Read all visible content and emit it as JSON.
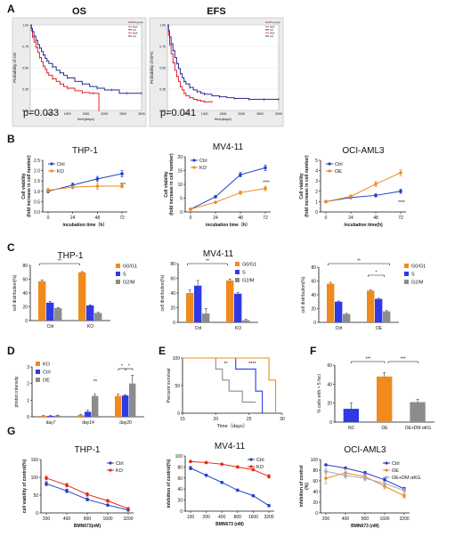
{
  "panel_letters": [
    "A",
    "B",
    "C",
    "D",
    "E",
    "F",
    "G"
  ],
  "chart_data": [
    {
      "panel": "A",
      "type": "line",
      "title": "OS",
      "xlabel": "time(days)",
      "ylabel": "Probability of OS",
      "xlim": [
        0,
        3000
      ],
      "ylim": [
        0,
        1
      ],
      "grid": true,
      "xticks": [
        "0",
        "500",
        "1000",
        "1500",
        "2000",
        "2500",
        "3000"
      ],
      "yticks": [
        "0.00",
        "0.25",
        "0.50",
        "0.75",
        "1.00"
      ],
      "legend_title": "KCAT1 group",
      "legend_entries": [
        "high",
        "low",
        "high",
        "low"
      ],
      "pvalue": "p=0.033",
      "series": [
        {
          "name": "high",
          "color": "#e8202a",
          "x": [
            0,
            30,
            60,
            100,
            150,
            200,
            250,
            300,
            350,
            400,
            450,
            500,
            600,
            700,
            800,
            900,
            1000,
            1200,
            1400,
            1600,
            1700,
            1800,
            1850
          ],
          "y": [
            1.0,
            0.93,
            0.86,
            0.8,
            0.74,
            0.68,
            0.62,
            0.57,
            0.52,
            0.48,
            0.44,
            0.41,
            0.37,
            0.34,
            0.31,
            0.28,
            0.26,
            0.23,
            0.21,
            0.2,
            0.2,
            0.2,
            0.0
          ]
        },
        {
          "name": "low",
          "color": "#2a2f8f",
          "x": [
            0,
            30,
            60,
            100,
            150,
            200,
            250,
            300,
            350,
            400,
            450,
            500,
            600,
            700,
            800,
            900,
            1000,
            1200,
            1400,
            1600,
            1800,
            2000,
            2200,
            2400,
            2600,
            2800,
            3000
          ],
          "y": [
            1.0,
            0.96,
            0.92,
            0.87,
            0.82,
            0.77,
            0.73,
            0.69,
            0.65,
            0.61,
            0.58,
            0.55,
            0.51,
            0.47,
            0.44,
            0.41,
            0.38,
            0.34,
            0.31,
            0.28,
            0.26,
            0.24,
            0.24,
            0.2,
            0.2,
            0.2,
            0.2
          ]
        }
      ]
    },
    {
      "panel": "A2",
      "type": "line",
      "title": "EFS",
      "xlabel": "time(days)",
      "ylabel": "Probability of EFS",
      "xlim": [
        0,
        3000
      ],
      "ylim": [
        0,
        1
      ],
      "grid": true,
      "xticks": [
        "0",
        "500",
        "1000",
        "1500",
        "2000",
        "2500",
        "3000"
      ],
      "yticks": [
        "0.00",
        "0.25",
        "0.50",
        "0.75",
        "1.00"
      ],
      "legend_title": "KCAT1 group",
      "legend_entries": [
        "high",
        "low",
        "high",
        "low"
      ],
      "pvalue": "p=0.041",
      "series": [
        {
          "name": "high",
          "color": "#e8202a",
          "x": [
            0,
            30,
            60,
            100,
            150,
            200,
            250,
            300,
            350,
            400,
            450,
            500,
            600,
            700,
            800,
            900,
            1000,
            1100,
            1200
          ],
          "y": [
            1.0,
            0.88,
            0.77,
            0.66,
            0.56,
            0.47,
            0.4,
            0.34,
            0.28,
            0.24,
            0.2,
            0.17,
            0.15,
            0.13,
            0.12,
            0.11,
            0.1,
            0.1,
            0.1
          ]
        },
        {
          "name": "low",
          "color": "#2a2f8f",
          "x": [
            0,
            30,
            60,
            100,
            150,
            200,
            250,
            300,
            350,
            400,
            450,
            500,
            600,
            700,
            800,
            900,
            1000,
            1200,
            1400,
            1600,
            1800,
            2000,
            2200,
            2400,
            2600,
            2800,
            3000
          ],
          "y": [
            1.0,
            0.93,
            0.86,
            0.78,
            0.7,
            0.62,
            0.55,
            0.49,
            0.43,
            0.38,
            0.34,
            0.31,
            0.27,
            0.24,
            0.22,
            0.2,
            0.19,
            0.17,
            0.16,
            0.15,
            0.14,
            0.14,
            0.13,
            0.13,
            0.13,
            0.13,
            0.13
          ]
        }
      ]
    },
    {
      "panel": "B",
      "type": "line",
      "title": "THP-1",
      "xlabel": "incubation time（h）",
      "ylabel": "Cell viability (fold increase in cell number)",
      "categories": [
        "0",
        "24",
        "48",
        "72"
      ],
      "ylim": [
        0,
        2.5
      ],
      "yticks": [
        "0.0",
        "0.5",
        "1.0",
        "1.5",
        "2.0",
        "2.5"
      ],
      "legend": "top-left",
      "significance": "***",
      "series": [
        {
          "name": "Ctrl",
          "color": "#1f3fc8",
          "values": [
            1.0,
            1.3,
            1.6,
            1.85
          ],
          "err": [
            0.08,
            0.1,
            0.12,
            0.15
          ]
        },
        {
          "name": "KO",
          "color": "#ea8a1e",
          "values": [
            1.05,
            1.2,
            1.25,
            1.25
          ],
          "err": [
            0.1,
            0.08,
            0.15,
            0.08
          ]
        }
      ]
    },
    {
      "panel": "B2",
      "type": "line",
      "title": "MV4-11",
      "xlabel": "incubation time（h）",
      "ylabel": "Cell viability (fold increase in cell number)",
      "categories": [
        "0",
        "24",
        "48",
        "72"
      ],
      "ylim": [
        0,
        20
      ],
      "yticks": [
        "0",
        "5",
        "10",
        "15",
        "20"
      ],
      "legend": "top-left",
      "significance": "****",
      "series": [
        {
          "name": "Ctrl",
          "color": "#1f3fc8",
          "values": [
            1.0,
            5.5,
            13.5,
            16.0
          ],
          "err": [
            0.2,
            0.4,
            0.8,
            1.0
          ]
        },
        {
          "name": "KO",
          "color": "#ea8a1e",
          "values": [
            1.0,
            3.5,
            7.0,
            8.5
          ],
          "err": [
            0.2,
            0.3,
            0.6,
            0.8
          ]
        }
      ]
    },
    {
      "panel": "B3",
      "type": "line",
      "title": "OCI-AML3",
      "xlabel": "Incubation time(h)",
      "ylabel": "Cell viability (fold increase in cell number)",
      "categories": [
        "0",
        "24",
        "48",
        "72"
      ],
      "ylim": [
        0,
        5
      ],
      "yticks": [
        "0",
        "1",
        "2",
        "3",
        "4",
        "5"
      ],
      "legend": "top-left",
      "significance": "****",
      "series": [
        {
          "name": "Ctrl",
          "color": "#1f3fc8",
          "values": [
            1.0,
            1.4,
            1.6,
            2.0
          ],
          "err": [
            0.1,
            0.1,
            0.15,
            0.2
          ]
        },
        {
          "name": "OE",
          "color": "#ea8a1e",
          "values": [
            1.0,
            1.5,
            2.7,
            3.8
          ],
          "err": [
            0.1,
            0.15,
            0.25,
            0.3
          ]
        }
      ]
    },
    {
      "panel": "C",
      "type": "bar",
      "title": "THP-1",
      "ylabel": "cell distribution(%)",
      "categories": [
        "Ctrl",
        "KO"
      ],
      "ylim": [
        0,
        80
      ],
      "yticks": [
        "0",
        "20",
        "40",
        "60",
        "80"
      ],
      "significance": [
        "**"
      ],
      "series": [
        {
          "name": "G0/G1",
          "color": "#f08a1c",
          "values": [
            57,
            70
          ],
          "err": [
            1.5,
            1
          ]
        },
        {
          "name": "S",
          "color": "#2f3ae6",
          "values": [
            26,
            22
          ],
          "err": [
            2,
            1
          ]
        },
        {
          "name": "G2/M",
          "color": "#8c8c8c",
          "values": [
            18,
            11
          ],
          "err": [
            1,
            1
          ]
        }
      ]
    },
    {
      "panel": "C2",
      "type": "bar",
      "title": "MV4-11",
      "ylabel": "cell distribution(%)",
      "categories": [
        "Ctrl",
        "KO"
      ],
      "ylim": [
        0,
        80
      ],
      "yticks": [
        "0",
        "20",
        "40",
        "60",
        "80"
      ],
      "significance": [
        "**"
      ],
      "series": [
        {
          "name": "G0/G1",
          "color": "#f08a1c",
          "values": [
            40,
            57
          ],
          "err": [
            4,
            2
          ]
        },
        {
          "name": "S",
          "color": "#2f3ae6",
          "values": [
            50,
            39
          ],
          "err": [
            7,
            2
          ]
        },
        {
          "name": "G2/M",
          "color": "#8c8c8c",
          "values": [
            12,
            3
          ],
          "err": [
            7,
            1
          ]
        }
      ]
    },
    {
      "panel": "C3",
      "type": "bar",
      "title": "",
      "ylabel": "cell distribution(%)",
      "categories": [
        "Ctrl",
        "OE"
      ],
      "ylim": [
        0,
        80
      ],
      "yticks": [
        "0",
        "20",
        "40",
        "60",
        "80"
      ],
      "significance": [
        "**",
        "*"
      ],
      "series": [
        {
          "name": "G0/G1",
          "color": "#f08a1c",
          "values": [
            56,
            46
          ],
          "err": [
            2,
            1
          ]
        },
        {
          "name": "S",
          "color": "#2f3ae6",
          "values": [
            30,
            34
          ],
          "err": [
            1,
            1
          ]
        },
        {
          "name": "G2/M",
          "color": "#8c8c8c",
          "values": [
            12,
            16
          ],
          "err": [
            1,
            1
          ]
        }
      ]
    },
    {
      "panel": "D",
      "type": "bar",
      "title": "",
      "ylabel": "photon intensity",
      "categories": [
        "day7",
        "day14",
        "day20"
      ],
      "ylim": [
        0,
        3
      ],
      "yticks": [
        "0",
        "1",
        "2",
        "3"
      ],
      "significance": [
        "ns",
        "*",
        "*"
      ],
      "series": [
        {
          "name": "KO",
          "color": "#f08a1c",
          "values": [
            0.05,
            0.1,
            1.25
          ],
          "err": [
            0.02,
            0.05,
            0.1
          ]
        },
        {
          "name": "Ctrl",
          "color": "#2f3ae6",
          "values": [
            0.05,
            0.3,
            1.28
          ],
          "err": [
            0.02,
            0.1,
            0.05
          ]
        },
        {
          "name": "OE",
          "color": "#8c8c8c",
          "values": [
            0.07,
            1.25,
            2.0
          ],
          "err": [
            0.03,
            0.1,
            0.5
          ]
        }
      ]
    },
    {
      "panel": "E",
      "type": "line",
      "title": "",
      "xlabel": "Time（days）",
      "ylabel": "Percent survival",
      "xlim": [
        15,
        30
      ],
      "ylim": [
        0,
        100
      ],
      "xticks": [
        "15",
        "20",
        "25",
        "30"
      ],
      "yticks": [
        "0",
        "50",
        "100"
      ],
      "significance": [
        "**",
        "****"
      ],
      "series": [
        {
          "name": "grey",
          "color": "#8c8c8c",
          "x": [
            15,
            20,
            20,
            21,
            21,
            22,
            22,
            24,
            24,
            26
          ],
          "y": [
            100,
            100,
            80,
            80,
            60,
            60,
            40,
            40,
            20,
            20
          ]
        },
        {
          "name": "blue",
          "color": "#2f3ae6",
          "x": [
            15,
            23,
            23,
            26,
            26,
            27,
            27
          ],
          "y": [
            100,
            100,
            80,
            80,
            40,
            40,
            0
          ]
        },
        {
          "name": "orange",
          "color": "#f08a1c",
          "x": [
            15,
            28,
            28,
            29,
            29
          ],
          "y": [
            100,
            100,
            60,
            60,
            0
          ]
        }
      ]
    },
    {
      "panel": "F",
      "type": "bar",
      "title": "",
      "ylabel": "% cells with > 5 foci",
      "categories": [
        "NC",
        "OE",
        "OE+DM αKG"
      ],
      "ylim": [
        0,
        60
      ],
      "yticks": [
        "0",
        "20",
        "40",
        "60"
      ],
      "significance": [
        "***",
        "***"
      ],
      "series": [
        {
          "name": "",
          "values": [
            14,
            48,
            21
          ],
          "colors": [
            "#2f3ae6",
            "#f08a1c",
            "#8c8c8c"
          ],
          "err": [
            6,
            4,
            3
          ]
        }
      ]
    },
    {
      "panel": "G",
      "type": "line",
      "title": "THP-1",
      "xlabel": "BMN673(nM)",
      "ylabel": "cell viability of control(%)",
      "categories": [
        "200",
        "400",
        "800",
        "1600",
        "3200"
      ],
      "ylim": [
        0,
        150
      ],
      "yticks": [
        "0",
        "50",
        "100",
        "150"
      ],
      "legend": "top-right",
      "series": [
        {
          "name": "Ctrl",
          "color": "#1f3fc8",
          "values": [
            82,
            62,
            38,
            22,
            8
          ],
          "err": [
            6,
            5,
            4,
            3,
            2
          ]
        },
        {
          "name": "KO",
          "color": "#e02a1a",
          "values": [
            98,
            78,
            52,
            34,
            12
          ],
          "err": [
            5,
            5,
            5,
            4,
            2
          ]
        }
      ]
    },
    {
      "panel": "G2",
      "type": "line",
      "title": "MV4-11",
      "xlabel": "BMN673 (nM)",
      "ylabel": "inhibition of control(%)",
      "categories": [
        "100",
        "200",
        "400",
        "800",
        "1600",
        "3200"
      ],
      "ylim": [
        0,
        100
      ],
      "yticks": [
        "0",
        "20",
        "40",
        "60",
        "80",
        "100"
      ],
      "legend": "top-right",
      "series": [
        {
          "name": "Ctrl",
          "color": "#1f3fc8",
          "values": [
            78,
            65,
            52,
            38,
            28,
            10
          ],
          "err": [
            3,
            2,
            2,
            2,
            2,
            2
          ]
        },
        {
          "name": "KO",
          "color": "#e02a1a",
          "values": [
            90,
            88,
            85,
            80,
            75,
            63
          ],
          "err": [
            2,
            2,
            2,
            2,
            2,
            3
          ]
        }
      ]
    },
    {
      "panel": "G3",
      "type": "line",
      "title": "OCI-AML3",
      "xlabel": "BMN673 (nM)",
      "ylabel": "inhibition of control (%)",
      "categories": [
        "200",
        "400",
        "800",
        "1600",
        "3200"
      ],
      "ylim": [
        0,
        100
      ],
      "yticks": [
        "0",
        "20",
        "40",
        "60",
        "80",
        "100"
      ],
      "legend": "top-right",
      "series": [
        {
          "name": "Ctrl",
          "color": "#1f3fc8",
          "values": [
            90,
            84,
            75,
            62,
            45
          ],
          "err": [
            2,
            2,
            3,
            3,
            3
          ]
        },
        {
          "name": "OE",
          "color": "#f08a1c",
          "values": [
            65,
            75,
            68,
            50,
            32
          ],
          "err": [
            10,
            8,
            6,
            5,
            4
          ]
        },
        {
          "name": "OE+DM αKG",
          "color": "#a8a8c0",
          "values": [
            78,
            70,
            65,
            55,
            42
          ],
          "err": [
            5,
            5,
            5,
            4,
            4
          ]
        }
      ]
    }
  ]
}
